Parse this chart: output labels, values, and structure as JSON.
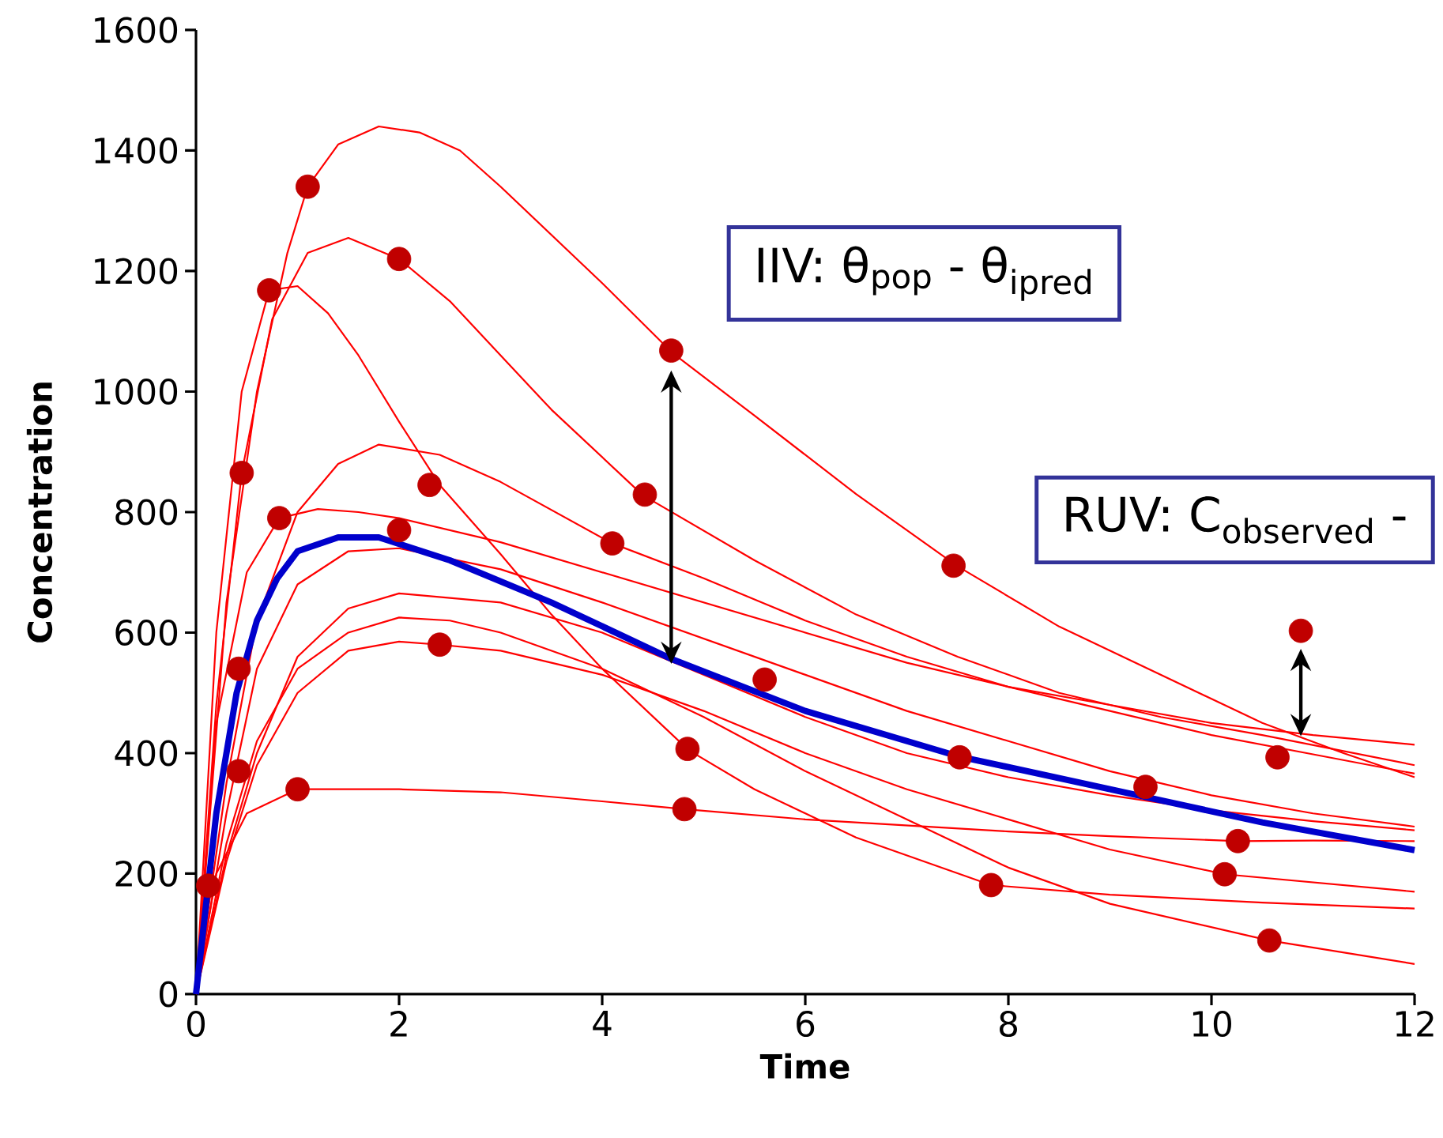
{
  "chart_data": {
    "type": "line",
    "xlabel": "Time",
    "ylabel": "Concentration",
    "xlim": [
      0,
      12
    ],
    "xticks": [
      0,
      2,
      4,
      6,
      8,
      10,
      12
    ],
    "ylim": [
      0,
      1600
    ],
    "yticks": [
      0,
      200,
      400,
      600,
      800,
      1000,
      1200,
      1400,
      1600
    ],
    "annotations": [
      "IIV: θ$_{pop}$ - θ$_{ipred}$",
      "RUV: C$_{observed}$ -"
    ],
    "series": [
      {
        "type": "line",
        "color": "#ff0000",
        "marker": "none",
        "x": [
          0,
          0.3,
          0.6,
          0.9,
          1.1,
          1.4,
          1.8,
          2.2,
          2.6,
          3,
          3.5,
          4,
          4.7,
          5.5,
          6.5,
          7.5,
          8.5,
          9.5,
          10.5,
          11.3,
          12
        ],
        "values": [
          0,
          650,
          1000,
          1230,
          1340,
          1410,
          1440,
          1430,
          1400,
          1340,
          1260,
          1180,
          1063,
          960,
          830,
          710,
          610,
          530,
          450,
          400,
          360
        ]
      },
      {
        "type": "line",
        "color": "#ff0000",
        "marker": "none",
        "x": [
          0,
          0.2,
          0.45,
          0.75,
          1.1,
          1.5,
          2,
          2.5,
          3,
          3.5,
          4.4,
          5.5,
          6.5,
          7.5,
          8.5,
          9.5,
          10.5,
          12
        ],
        "values": [
          0,
          480,
          865,
          1120,
          1230,
          1255,
          1220,
          1150,
          1060,
          970,
          828,
          720,
          630,
          560,
          500,
          460,
          430,
          380
        ]
      },
      {
        "type": "line",
        "color": "#ff0000",
        "marker": "none",
        "x": [
          0,
          0.2,
          0.45,
          0.72,
          1.0,
          1.3,
          1.6,
          2,
          2.4,
          3,
          3.5,
          4,
          4.85,
          5.5,
          6.5,
          7.83,
          9,
          10.5,
          12
        ],
        "values": [
          0,
          600,
          1000,
          1168,
          1175,
          1130,
          1060,
          950,
          845,
          730,
          630,
          540,
          405,
          340,
          260,
          181,
          165,
          152,
          142
        ]
      },
      {
        "type": "line",
        "color": "#ff0000",
        "marker": "none",
        "x": [
          0,
          0.3,
          0.6,
          1,
          1.4,
          1.8,
          2.4,
          3,
          4.1,
          5,
          6,
          7,
          8,
          9,
          10,
          11,
          12
        ],
        "values": [
          0,
          350,
          620,
          800,
          880,
          912,
          895,
          850,
          748,
          690,
          620,
          560,
          510,
          470,
          430,
          398,
          366
        ]
      },
      {
        "type": "line",
        "color": "#ff0000",
        "marker": "none",
        "x": [
          0,
          0.2,
          0.5,
          0.82,
          1.2,
          1.6,
          2,
          3,
          4,
          5,
          6,
          7,
          8,
          9,
          10,
          11,
          12
        ],
        "values": [
          0,
          450,
          700,
          790,
          805,
          800,
          790,
          750,
          700,
          650,
          600,
          550,
          510,
          480,
          450,
          430,
          414
        ]
      },
      {
        "type": "line",
        "color": "#ff0000",
        "marker": "none",
        "x": [
          0,
          0.3,
          0.6,
          1,
          1.5,
          2,
          3,
          4,
          5,
          6,
          7,
          8,
          9,
          10,
          11,
          12
        ],
        "values": [
          0,
          300,
          540,
          680,
          735,
          740,
          705,
          650,
          590,
          530,
          470,
          420,
          370,
          330,
          300,
          278
        ]
      },
      {
        "type": "line",
        "color": "#ff0000",
        "marker": "none",
        "x": [
          0,
          0.3,
          0.6,
          1,
          1.5,
          2,
          3,
          4,
          5,
          6,
          7,
          8,
          9,
          10,
          11,
          12
        ],
        "values": [
          0,
          230,
          400,
          560,
          640,
          665,
          650,
          600,
          530,
          460,
          400,
          360,
          330,
          305,
          287,
          272
        ]
      },
      {
        "type": "line",
        "color": "#ff0000",
        "marker": "none",
        "x": [
          0,
          0.3,
          0.6,
          1,
          1.5,
          2,
          2.5,
          3,
          4,
          5,
          6,
          7,
          8,
          9,
          10.57,
          12
        ],
        "values": [
          0,
          250,
          420,
          540,
          600,
          625,
          620,
          600,
          540,
          460,
          370,
          290,
          210,
          150,
          89,
          50
        ]
      },
      {
        "type": "line",
        "color": "#ff0000",
        "marker": "none",
        "x": [
          0,
          0.3,
          0.6,
          1,
          1.5,
          2,
          2.4,
          3,
          4,
          5,
          6,
          7,
          8,
          9,
          10.13,
          12
        ],
        "values": [
          0,
          220,
          380,
          500,
          570,
          585,
          580,
          570,
          530,
          470,
          400,
          340,
          290,
          240,
          199,
          170
        ]
      },
      {
        "type": "line",
        "color": "#ff0000",
        "marker": "none",
        "x": [
          0,
          0.2,
          0.5,
          1,
          2,
          3,
          4,
          4.81,
          6,
          7,
          8,
          9,
          10.26,
          11,
          12
        ],
        "values": [
          0,
          200,
          300,
          340,
          340,
          335,
          320,
          307,
          290,
          280,
          270,
          262,
          254,
          255,
          254
        ]
      },
      {
        "type": "line",
        "color": "#0000cc",
        "marker": "none",
        "x": [
          0,
          0.2,
          0.4,
          0.6,
          0.8,
          1.0,
          1.4,
          1.8,
          2.5,
          3.5,
          4.7,
          6,
          7.5,
          9,
          10.5,
          12
        ],
        "values": [
          0,
          300,
          500,
          620,
          690,
          735,
          758,
          758,
          720,
          650,
          555,
          470,
          395,
          340,
          285,
          239
        ]
      },
      {
        "type": "scatter",
        "color": "#c00000",
        "marker": "circle",
        "x": [
          0.12,
          0.42,
          0.42,
          0.45,
          0.72,
          0.82,
          1.0,
          1.1,
          2.0,
          2.0,
          2.3,
          2.4,
          4.1,
          4.42,
          4.68,
          4.84,
          4.81,
          5.6,
          7.46,
          7.52,
          7.83,
          9.35,
          10.13,
          10.26,
          10.57,
          10.65,
          10.88
        ],
        "values": [
          180,
          370,
          540,
          865,
          1168,
          790,
          340,
          1340,
          1220,
          770,
          845,
          580,
          748,
          829,
          1068,
          407,
          307,
          522,
          711,
          393,
          181,
          344,
          199,
          254,
          89,
          393,
          603
        ]
      }
    ]
  }
}
